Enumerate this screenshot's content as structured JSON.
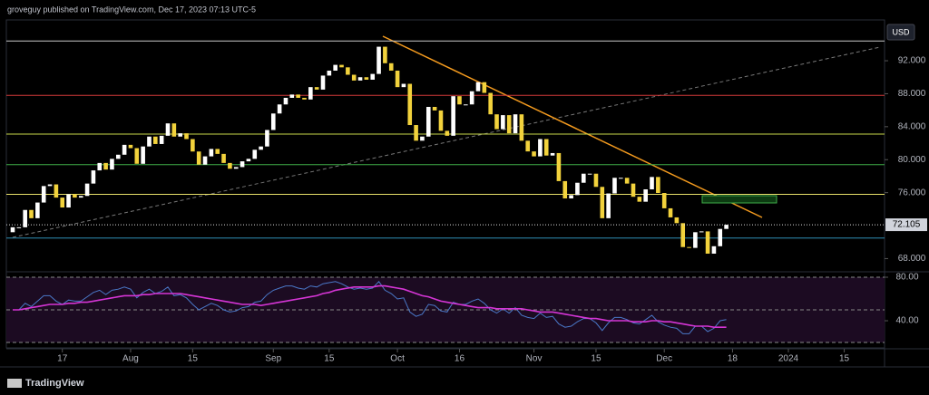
{
  "header": {
    "title": "groveguy published on TradingView.com, Dec 17, 2023 07:13 UTC-5",
    "brand": "TradingView"
  },
  "chart_data": {
    "type": "candlestick",
    "currency": "USD",
    "categories": [
      null,
      null,
      null,
      null,
      null,
      null,
      null,
      null,
      "17",
      null,
      null,
      null,
      null,
      null,
      null,
      null,
      null,
      null,
      null,
      "Aug",
      null,
      null,
      null,
      null,
      null,
      null,
      null,
      null,
      null,
      "15",
      null,
      null,
      null,
      null,
      null,
      null,
      null,
      null,
      null,
      null,
      null,
      null,
      "Sep",
      null,
      null,
      null,
      null,
      null,
      null,
      null,
      null,
      "15",
      null,
      null,
      null,
      null,
      null,
      null,
      null,
      null,
      null,
      null,
      "Oct",
      null,
      null,
      null,
      null,
      null,
      null,
      null,
      null,
      null,
      "16",
      null,
      null,
      null,
      null,
      null,
      null,
      null,
      null,
      null,
      null,
      null,
      "Nov",
      null,
      null,
      null,
      null,
      null,
      null,
      null,
      null,
      null,
      "15",
      null,
      null,
      null,
      null,
      null,
      null,
      null,
      null,
      null,
      null,
      "Dec",
      null,
      null,
      null,
      null,
      null,
      null,
      null,
      null,
      null,
      null,
      "18",
      null,
      null,
      null,
      null,
      null,
      null,
      null,
      null,
      "2024",
      null,
      null,
      null,
      null,
      null,
      null,
      null,
      null,
      "15"
    ],
    "open": [
      71.2,
      71.8,
      71.8,
      73.9,
      72.9,
      74.8,
      76.8,
      77.0,
      75.4,
      74.2,
      75.8,
      75.4,
      75.6,
      77.1,
      78.7,
      79.6,
      78.8,
      80.1,
      80.6,
      81.8,
      81.4,
      79.5,
      81.6,
      82.8,
      81.9,
      82.9,
      84.4,
      82.8,
      83.2,
      82.5,
      80.99,
      79.4,
      80.4,
      81.3,
      80.7,
      79.6,
      78.9,
      79.1,
      79.8,
      80.1,
      81.2,
      81.6,
      83.6,
      85.6,
      86.7,
      87.5,
      87.9,
      87.5,
      87.3,
      88.8,
      88.5,
      90.2,
      90.8,
      91.5,
      91.2,
      90.3,
      89.6,
      90.0,
      89.7,
      90.4,
      93.7,
      91.7,
      90.8,
      88.8,
      89.2,
      84.2,
      82.3,
      82.8,
      86.4,
      85.97,
      83.5,
      82.9,
      87.7,
      86.7,
      86.7,
      88.3,
      89.4,
      88.1,
      85.5,
      83.7,
      85.4,
      83.2,
      85.5,
      82.3,
      81.0,
      80.4,
      82.5,
      80.5,
      80.8,
      77.4,
      75.3,
      75.7,
      77.2,
      78.3,
      78.3,
      76.7,
      72.9,
      75.9,
      77.8,
      77.8,
      77.1,
      75.5,
      74.9,
      76.4,
      77.9,
      75.96,
      74.1,
      73.0,
      72.3,
      69.4,
      69.3,
      71.2,
      71.3,
      68.6,
      69.5,
      71.6,
      null,
      null,
      null,
      null,
      null,
      null,
      null,
      null,
      null,
      null,
      null,
      null,
      null,
      null,
      null,
      null,
      null,
      null,
      null
    ],
    "close": [
      71.8,
      71.8,
      73.9,
      72.9,
      74.8,
      76.8,
      77.0,
      75.4,
      74.2,
      75.8,
      75.4,
      75.6,
      77.1,
      78.7,
      79.6,
      78.8,
      80.1,
      80.6,
      81.8,
      81.4,
      79.5,
      81.6,
      82.8,
      81.9,
      82.9,
      84.4,
      82.8,
      83.2,
      82.5,
      80.99,
      79.4,
      80.4,
      81.3,
      80.7,
      79.6,
      78.9,
      79.1,
      79.8,
      80.1,
      81.2,
      81.6,
      83.6,
      85.6,
      86.7,
      87.5,
      87.9,
      87.5,
      87.3,
      88.8,
      88.5,
      90.2,
      90.8,
      91.5,
      91.2,
      90.3,
      89.6,
      90.0,
      89.7,
      90.4,
      93.7,
      91.7,
      90.8,
      88.8,
      89.2,
      84.2,
      82.3,
      82.8,
      86.4,
      85.97,
      83.5,
      82.9,
      87.7,
      86.7,
      86.7,
      88.3,
      89.4,
      88.1,
      85.5,
      83.7,
      85.4,
      83.2,
      85.5,
      82.3,
      81.0,
      80.4,
      82.5,
      80.5,
      80.8,
      77.4,
      75.3,
      75.7,
      77.2,
      78.3,
      78.3,
      76.7,
      72.9,
      75.9,
      77.8,
      77.8,
      77.1,
      75.5,
      74.9,
      76.4,
      77.9,
      75.96,
      74.1,
      73.0,
      72.3,
      69.4,
      69.3,
      71.2,
      71.3,
      68.6,
      69.5,
      71.6,
      72.105,
      null,
      null,
      null,
      null,
      null,
      null,
      null,
      null,
      null,
      null,
      null,
      null,
      null,
      null,
      null,
      null,
      null,
      null,
      null
    ],
    "up_color": "#ffffff",
    "down_color": "#f2d23c",
    "ylim": [
      66.4,
      96.95
    ],
    "yticks": [
      {
        "value": 68,
        "label": "68.000"
      },
      {
        "value": 76,
        "label": "76.000"
      },
      {
        "value": 80,
        "label": "80.000"
      },
      {
        "value": 84,
        "label": "84.000"
      },
      {
        "value": 88,
        "label": "88.000"
      },
      {
        "value": 92,
        "label": "92.000"
      }
    ],
    "levels": [
      {
        "value": 94.4,
        "color": "#c8c8c8"
      },
      {
        "value": 87.8,
        "color": "#d33b3b"
      },
      {
        "value": 83.1,
        "color": "#c8d84a"
      },
      {
        "value": 79.4,
        "color": "#3fae49"
      },
      {
        "value": 75.8,
        "color": "#e8e06a"
      },
      {
        "value": 70.5,
        "color": "#2f8fb5"
      }
    ],
    "rsi": {
      "ylim": [
        14.2,
        85
      ],
      "yticks": [
        {
          "value": 80,
          "label": "80.00"
        },
        {
          "value": 40,
          "label": "40.00"
        }
      ],
      "bands": [
        80,
        50,
        20
      ],
      "series": [
        {
          "color": "#4a78c8",
          "values": [
            50,
            50,
            56,
            53,
            58,
            63,
            63,
            58,
            55,
            59,
            58,
            58,
            62,
            66,
            68,
            64,
            68,
            69,
            71,
            69,
            61,
            66,
            69,
            65,
            67,
            71,
            63,
            64,
            61,
            55,
            50,
            53,
            56,
            54,
            50,
            48,
            49,
            52,
            53,
            57,
            58,
            64,
            68,
            70,
            72,
            72,
            70,
            69,
            72,
            71,
            74,
            75,
            76,
            74,
            71,
            69,
            70,
            69,
            70,
            76,
            68,
            65,
            60,
            61,
            48,
            44,
            46,
            55,
            54,
            49,
            48,
            57,
            55,
            55,
            58,
            60,
            56,
            50,
            47,
            51,
            47,
            52,
            45,
            43,
            42,
            47,
            43,
            44,
            37,
            34,
            35,
            39,
            42,
            42,
            38,
            31,
            38,
            43,
            43,
            41,
            38,
            37,
            41,
            45,
            39,
            36,
            34,
            33,
            28,
            28,
            35,
            35,
            30,
            33,
            40,
            41,
            null,
            null,
            null,
            null,
            null,
            null,
            null,
            null,
            null,
            null,
            null,
            null,
            null,
            null,
            null,
            null,
            null,
            null,
            null
          ]
        },
        {
          "color": "#d535d5",
          "values": [
            50,
            50,
            51,
            52,
            53,
            54,
            55,
            55,
            55,
            56,
            56,
            57,
            57,
            58,
            59,
            60,
            61,
            62,
            63,
            63,
            63,
            64,
            64,
            65,
            65,
            65,
            65,
            65,
            64,
            63,
            62,
            61,
            60,
            59,
            58,
            57,
            56,
            55,
            55,
            55,
            54,
            55,
            56,
            57,
            58,
            59,
            60,
            61,
            62,
            63,
            65,
            66,
            68,
            69,
            70,
            71,
            71,
            71,
            71,
            72,
            72,
            71,
            70,
            69,
            67,
            65,
            63,
            62,
            60,
            58,
            57,
            56,
            55,
            54,
            53,
            52,
            52,
            52,
            51,
            51,
            51,
            51,
            51,
            50,
            49,
            48,
            48,
            48,
            47,
            46,
            45,
            44,
            43,
            42,
            42,
            41,
            40,
            40,
            40,
            40,
            39,
            39,
            39,
            40,
            40,
            39,
            39,
            38,
            37,
            36,
            35,
            35,
            35,
            34,
            34,
            34,
            null,
            null,
            null,
            null,
            null,
            null,
            null,
            null,
            null,
            null,
            null,
            null,
            null,
            null,
            null,
            null,
            null,
            null,
            null
          ]
        }
      ]
    }
  }
}
